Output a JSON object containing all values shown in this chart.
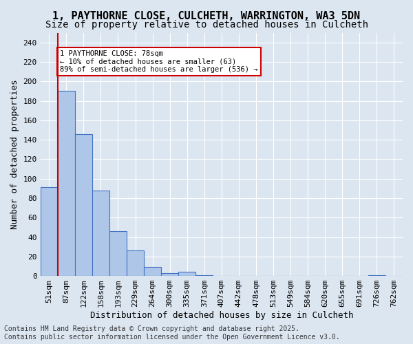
{
  "title1": "1, PAYTHORNE CLOSE, CULCHETH, WARRINGTON, WA3 5DN",
  "title2": "Size of property relative to detached houses in Culcheth",
  "xlabel": "Distribution of detached houses by size in Culcheth",
  "ylabel": "Number of detached properties",
  "footer1": "Contains HM Land Registry data © Crown copyright and database right 2025.",
  "footer2": "Contains public sector information licensed under the Open Government Licence v3.0.",
  "bin_labels": [
    "51sqm",
    "87sqm",
    "122sqm",
    "158sqm",
    "193sqm",
    "229sqm",
    "264sqm",
    "300sqm",
    "335sqm",
    "371sqm",
    "407sqm",
    "442sqm",
    "478sqm",
    "513sqm",
    "549sqm",
    "584sqm",
    "620sqm",
    "655sqm",
    "691sqm",
    "726sqm",
    "762sqm"
  ],
  "bar_heights": [
    91,
    190,
    146,
    88,
    46,
    26,
    9,
    3,
    4,
    1,
    0,
    0,
    0,
    0,
    0,
    0,
    0,
    0,
    0,
    1,
    0
  ],
  "bar_color": "#aec6e8",
  "bar_edge_color": "#4472c4",
  "background_color": "#dce6f1",
  "grid_color": "#ffffff",
  "annotation_text": "1 PAYTHORNE CLOSE: 78sqm\n← 10% of detached houses are smaller (63)\n89% of semi-detached houses are larger (536) →",
  "annotation_box_color": "#ffffff",
  "annotation_box_edge": "#cc0000",
  "vline_x": 0.5,
  "vline_color": "#cc0000",
  "ylim": [
    0,
    250
  ],
  "yticks": [
    0,
    20,
    40,
    60,
    80,
    100,
    120,
    140,
    160,
    180,
    200,
    220,
    240
  ],
  "title1_fontsize": 11,
  "title2_fontsize": 10,
  "xlabel_fontsize": 9,
  "ylabel_fontsize": 9,
  "tick_fontsize": 8,
  "footer_fontsize": 7
}
